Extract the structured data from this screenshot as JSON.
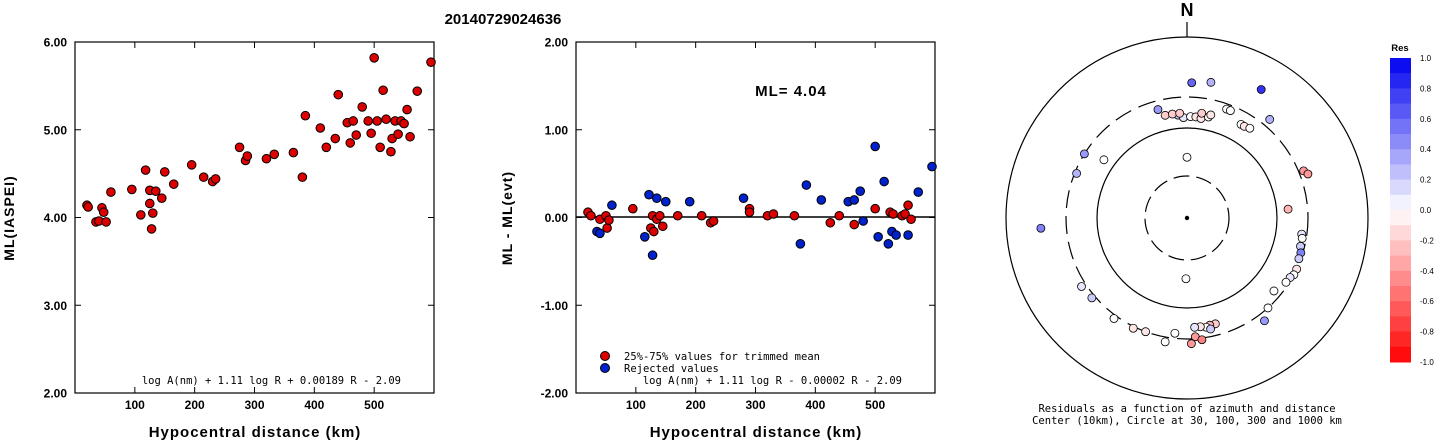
{
  "title": "20140729024636",
  "colors": {
    "red": "#dd0000",
    "blue": "#0022cc",
    "axis": "#000000"
  },
  "chart_data": [
    {
      "type": "scatter",
      "name": "ml-vs-distance",
      "xlabel": "Hypocentral distance (km)",
      "ylabel": "ML(IASPEI)",
      "xlim": [
        0,
        600
      ],
      "ylim": [
        2.0,
        6.0
      ],
      "xticks": [
        "100",
        "200",
        "300",
        "400",
        "500"
      ],
      "xtick_values": [
        100,
        200,
        300,
        400,
        500
      ],
      "yticks": [
        "2.00",
        "3.00",
        "4.00",
        "5.00",
        "6.00"
      ],
      "ytick_values": [
        2,
        3,
        4,
        5,
        6
      ],
      "formula": "log A(nm) + 1.11 log R + 0.00189 R - 2.09",
      "points": [
        [
          20,
          4.14
        ],
        [
          22,
          4.12
        ],
        [
          35,
          3.95
        ],
        [
          40,
          3.96
        ],
        [
          45,
          4.11
        ],
        [
          48,
          4.06
        ],
        [
          52,
          3.95
        ],
        [
          60,
          4.29
        ],
        [
          95,
          4.32
        ],
        [
          110,
          4.03
        ],
        [
          118,
          4.54
        ],
        [
          125,
          4.16
        ],
        [
          125,
          4.31
        ],
        [
          128,
          3.87
        ],
        [
          130,
          4.05
        ],
        [
          135,
          4.3
        ],
        [
          145,
          4.22
        ],
        [
          150,
          4.52
        ],
        [
          165,
          4.38
        ],
        [
          195,
          4.6
        ],
        [
          215,
          4.46
        ],
        [
          230,
          4.41
        ],
        [
          235,
          4.44
        ],
        [
          275,
          4.8
        ],
        [
          285,
          4.65
        ],
        [
          288,
          4.7
        ],
        [
          320,
          4.67
        ],
        [
          333,
          4.72
        ],
        [
          365,
          4.74
        ],
        [
          380,
          4.46
        ],
        [
          385,
          5.16
        ],
        [
          410,
          5.02
        ],
        [
          420,
          4.8
        ],
        [
          435,
          4.9
        ],
        [
          440,
          5.4
        ],
        [
          455,
          5.08
        ],
        [
          460,
          4.85
        ],
        [
          465,
          5.1
        ],
        [
          470,
          4.94
        ],
        [
          480,
          5.26
        ],
        [
          490,
          5.1
        ],
        [
          495,
          4.96
        ],
        [
          500,
          5.82
        ],
        [
          505,
          5.1
        ],
        [
          510,
          4.8
        ],
        [
          515,
          5.45
        ],
        [
          520,
          5.12
        ],
        [
          528,
          4.75
        ],
        [
          530,
          4.9
        ],
        [
          535,
          5.1
        ],
        [
          540,
          4.95
        ],
        [
          545,
          5.1
        ],
        [
          550,
          5.07
        ],
        [
          555,
          5.23
        ],
        [
          560,
          4.92
        ],
        [
          572,
          5.44
        ],
        [
          595,
          5.77
        ]
      ]
    },
    {
      "type": "scatter",
      "name": "residuals-vs-distance",
      "xlabel": "Hypocentral distance (km)",
      "ylabel": "ML - ML(evt)",
      "xlim": [
        0,
        600
      ],
      "ylim": [
        -2.0,
        2.0
      ],
      "xticks": [
        "100",
        "200",
        "300",
        "400",
        "500"
      ],
      "xtick_values": [
        100,
        200,
        300,
        400,
        500
      ],
      "yticks": [
        "-2.00",
        "-1.00",
        "0.00",
        "1.00",
        "2.00"
      ],
      "ytick_values": [
        -2,
        -1,
        0,
        1,
        2
      ],
      "annotation": "ML= 4.04",
      "legend": [
        {
          "label": "25%-75% values for trimmed mean",
          "color": "red"
        },
        {
          "label": "Rejected values",
          "color": "blue"
        }
      ],
      "formula": "log A(nm) + 1.11 log R - 0.00002 R - 2.09",
      "series": [
        {
          "name": "25%-75% values for trimmed mean",
          "color": "red",
          "points": [
            [
              20,
              0.06
            ],
            [
              25,
              0.02
            ],
            [
              40,
              -0.02
            ],
            [
              50,
              0.02
            ],
            [
              52,
              -0.12
            ],
            [
              55,
              -0.03
            ],
            [
              95,
              0.1
            ],
            [
              125,
              -0.12
            ],
            [
              128,
              0.02
            ],
            [
              130,
              -0.16
            ],
            [
              135,
              -0.02
            ],
            [
              140,
              0.02
            ],
            [
              145,
              -0.1
            ],
            [
              170,
              0.02
            ],
            [
              210,
              0.02
            ],
            [
              225,
              -0.06
            ],
            [
              230,
              -0.04
            ],
            [
              290,
              0.1
            ],
            [
              290,
              0.06
            ],
            [
              320,
              0.02
            ],
            [
              330,
              0.04
            ],
            [
              365,
              0.02
            ],
            [
              425,
              -0.06
            ],
            [
              440,
              0.02
            ],
            [
              465,
              -0.08
            ],
            [
              500,
              0.1
            ],
            [
              525,
              0.06
            ],
            [
              530,
              0.04
            ],
            [
              545,
              0.02
            ],
            [
              550,
              0.04
            ],
            [
              555,
              0.14
            ],
            [
              560,
              -0.02
            ]
          ]
        },
        {
          "name": "Rejected values",
          "color": "blue",
          "points": [
            [
              35,
              -0.16
            ],
            [
              40,
              -0.18
            ],
            [
              60,
              0.14
            ],
            [
              115,
              -0.22
            ],
            [
              122,
              0.26
            ],
            [
              128,
              -0.43
            ],
            [
              135,
              0.22
            ],
            [
              150,
              0.18
            ],
            [
              190,
              0.18
            ],
            [
              280,
              0.22
            ],
            [
              375,
              -0.3
            ],
            [
              385,
              0.37
            ],
            [
              410,
              0.2
            ],
            [
              455,
              0.18
            ],
            [
              465,
              0.2
            ],
            [
              475,
              0.3
            ],
            [
              480,
              -0.04
            ],
            [
              500,
              0.81
            ],
            [
              505,
              -0.22
            ],
            [
              515,
              0.41
            ],
            [
              522,
              -0.3
            ],
            [
              528,
              -0.16
            ],
            [
              535,
              -0.2
            ],
            [
              555,
              -0.2
            ],
            [
              572,
              0.29
            ],
            [
              595,
              0.58
            ]
          ]
        }
      ]
    },
    {
      "type": "scatter",
      "name": "azimuth-distance-residuals",
      "north_label": "N",
      "caption_line1": "Residuals as a function of azimuth and distance",
      "caption_line2": "Center (10km), Circle at 30, 100, 300 and 1000 km",
      "rings_km": [
        30,
        100,
        300,
        1000
      ],
      "colorbar": {
        "title": "Res",
        "ticks": [
          "1.0",
          "0.8",
          "0.6",
          "0.4",
          "0.2",
          "0.0",
          "-0.2",
          "-0.4",
          "-0.6",
          "-0.8",
          "-1.0"
        ],
        "tick_values": [
          1.0,
          0.8,
          0.6,
          0.4,
          0.2,
          0.0,
          -0.2,
          -0.4,
          -0.6,
          -0.8,
          -1.0
        ]
      },
      "stations_azimuth_deg_distance_km_residual": [
        [
          0,
          48,
          0.0
        ],
        [
          181,
          48,
          0.0
        ],
        [
          305,
          150,
          0.0
        ],
        [
          355,
          160,
          0.2
        ],
        [
          358,
          145,
          0.1
        ],
        [
          2,
          150,
          0.0
        ],
        [
          5,
          150,
          -0.1
        ],
        [
          8,
          145,
          -0.1
        ],
        [
          12,
          160,
          0.0
        ],
        [
          348,
          170,
          -0.2
        ],
        [
          352,
          170,
          -0.2
        ],
        [
          356,
          170,
          -0.2
        ],
        [
          8,
          175,
          -0.2
        ],
        [
          13,
          175,
          -0.1
        ],
        [
          30,
          190,
          0.0
        ],
        [
          32,
          190,
          -0.1
        ],
        [
          292,
          280,
          0.3
        ],
        [
          345,
          220,
          0.4
        ],
        [
          20,
          250,
          0.0
        ],
        [
          22,
          250,
          0.0
        ],
        [
          2,
          400,
          0.6
        ],
        [
          10,
          420,
          0.3
        ],
        [
          30,
          520,
          0.8
        ],
        [
          40,
          350,
          0.3
        ],
        [
          35,
          200,
          0.0
        ],
        [
          68,
          330,
          -0.4
        ],
        [
          70,
          350,
          -0.4
        ],
        [
          85,
          150,
          -0.3
        ],
        [
          98,
          250,
          0.1
        ],
        [
          100,
          260,
          0.0
        ],
        [
          104,
          260,
          0.2
        ],
        [
          107,
          280,
          0.5
        ],
        [
          110,
          280,
          0.2
        ],
        [
          115,
          300,
          -0.1
        ],
        [
          118,
          300,
          0.0
        ],
        [
          120,
          280,
          0.1
        ],
        [
          123,
          270,
          0.0
        ],
        [
          130,
          230,
          0.0
        ],
        [
          138,
          300,
          0.0
        ],
        [
          143,
          350,
          0.4
        ],
        [
          165,
          200,
          -0.2
        ],
        [
          168,
          200,
          -0.3
        ],
        [
          170,
          210,
          0.0
        ],
        [
          173,
          200,
          -0.1
        ],
        [
          168,
          230,
          0.2
        ],
        [
          176,
          200,
          0.1
        ],
        [
          176,
          280,
          -0.4
        ],
        [
          178,
          330,
          -0.4
        ],
        [
          173,
          310,
          -0.5
        ],
        [
          186,
          250,
          0.0
        ],
        [
          190,
          330,
          0.0
        ],
        [
          200,
          300,
          -0.1
        ],
        [
          206,
          310,
          -0.1
        ],
        [
          216,
          320,
          0.0
        ],
        [
          230,
          320,
          0.2
        ],
        [
          237,
          330,
          0.1
        ],
        [
          266,
          500,
          0.5
        ],
        [
          302,
          300,
          0.4
        ]
      ]
    }
  ]
}
